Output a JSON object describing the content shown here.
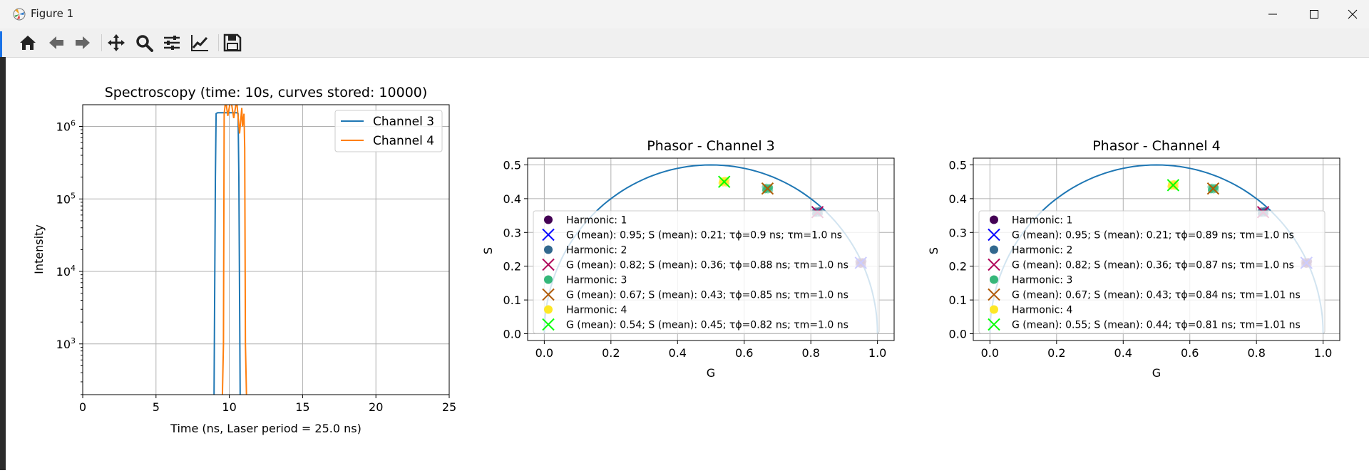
{
  "window": {
    "title": "Figure 1",
    "icons": {
      "app": "matplotlib-icon",
      "minimize": "minimize-icon",
      "maximize": "maximize-icon",
      "close": "close-icon"
    }
  },
  "toolbar": {
    "buttons": [
      "home-icon",
      "back-arrow-icon",
      "forward-arrow-icon",
      "pan-move-icon",
      "zoom-magnifier-icon",
      "configure-subplots-icon",
      "edit-axis-icon",
      "save-floppy-icon"
    ]
  },
  "colors": {
    "channel3": "#1f77b4",
    "channel4": "#ff7f0e",
    "h1_dot": "#440154",
    "h2_dot": "#31688e",
    "h3_dot": "#35b779",
    "h4_dot": "#fde725",
    "h1_x": "#0000ff",
    "h2_x": "#b0005a",
    "h3_x": "#b05a00",
    "h4_x": "#00ff00"
  },
  "chart_data": [
    {
      "type": "line",
      "title": "Spectroscopy (time: 10s, curves stored: 10000)",
      "xlabel": "Time (ns, Laser period = 25.0 ns)",
      "ylabel": "Intensity",
      "xlim": [
        0,
        25
      ],
      "ylim_log10": [
        2.3,
        6.3
      ],
      "yscale": "log",
      "xticks": [
        "0",
        "5",
        "10",
        "15",
        "20",
        "25"
      ],
      "yticks": [
        {
          "base": "10",
          "exp": "6"
        },
        {
          "base": "10",
          "exp": "5"
        },
        {
          "base": "10",
          "exp": "4"
        },
        {
          "base": "10",
          "exp": "3"
        }
      ],
      "grid": true,
      "legend_position": "top-right",
      "series": [
        {
          "name": "Channel 3",
          "x": [
            8.95,
            9.05,
            9.1,
            9.2,
            10.5,
            10.6,
            10.65,
            10.75
          ],
          "y": [
            100,
            200000,
            1500000,
            1550000,
            1550000,
            1500000,
            200000,
            100
          ]
        },
        {
          "name": "Channel 4",
          "x": [
            9.5,
            9.6,
            9.65,
            9.75,
            9.9,
            10.1,
            10.3,
            10.5,
            10.7,
            10.85,
            10.9,
            11.0,
            11.05,
            11.1,
            11.2
          ],
          "y": [
            100,
            1000,
            1500000,
            2300000,
            1400000,
            2400000,
            1300000,
            2300000,
            800000,
            1800000,
            1000000,
            1500000,
            500000,
            1000,
            100
          ]
        }
      ]
    },
    {
      "type": "scatter",
      "title": "Phasor - Channel 3",
      "xlabel": "G",
      "ylabel": "S",
      "xlim": [
        -0.05,
        1.05
      ],
      "ylim": [
        -0.02,
        0.52
      ],
      "xticks": [
        "0.0",
        "0.2",
        "0.4",
        "0.6",
        "0.8",
        "1.0"
      ],
      "yticks": [
        "0.0",
        "0.1",
        "0.2",
        "0.3",
        "0.4",
        "0.5"
      ],
      "grid": true,
      "semicircle": true,
      "legend_position": "lower-left",
      "points": [
        {
          "harmonic": 1,
          "g": 0.95,
          "s": 0.21
        },
        {
          "harmonic": 2,
          "g": 0.82,
          "s": 0.36
        },
        {
          "harmonic": 3,
          "g": 0.67,
          "s": 0.43
        },
        {
          "harmonic": 4,
          "g": 0.54,
          "s": 0.45
        }
      ],
      "legend": [
        "Harmonic: 1",
        "G (mean): 0.95; S (mean): 0.21; τϕ=0.9 ns; τm=1.0 ns",
        "Harmonic: 2",
        "G (mean): 0.82; S (mean): 0.36; τϕ=0.88 ns; τm=1.0 ns",
        "Harmonic: 3",
        "G (mean): 0.67; S (mean): 0.43; τϕ=0.85 ns; τm=1.0 ns",
        "Harmonic: 4",
        "G (mean): 0.54; S (mean): 0.45; τϕ=0.82 ns; τm=1.0 ns"
      ]
    },
    {
      "type": "scatter",
      "title": "Phasor - Channel 4",
      "xlabel": "G",
      "ylabel": "S",
      "xlim": [
        -0.05,
        1.05
      ],
      "ylim": [
        -0.02,
        0.52
      ],
      "xticks": [
        "0.0",
        "0.2",
        "0.4",
        "0.6",
        "0.8",
        "1.0"
      ],
      "yticks": [
        "0.0",
        "0.1",
        "0.2",
        "0.3",
        "0.4",
        "0.5"
      ],
      "grid": true,
      "semicircle": true,
      "legend_position": "lower-left",
      "points": [
        {
          "harmonic": 1,
          "g": 0.95,
          "s": 0.21
        },
        {
          "harmonic": 2,
          "g": 0.82,
          "s": 0.36
        },
        {
          "harmonic": 3,
          "g": 0.67,
          "s": 0.43
        },
        {
          "harmonic": 4,
          "g": 0.55,
          "s": 0.44
        }
      ],
      "legend": [
        "Harmonic: 1",
        "G (mean): 0.95; S (mean): 0.21; τϕ=0.89 ns; τm=1.0 ns",
        "Harmonic: 2",
        "G (mean): 0.82; S (mean): 0.36; τϕ=0.87 ns; τm=1.0 ns",
        "Harmonic: 3",
        "G (mean): 0.67; S (mean): 0.43; τϕ=0.84 ns; τm=1.01 ns",
        "Harmonic: 4",
        "G (mean): 0.55; S (mean): 0.44; τϕ=0.81 ns; τm=1.01 ns"
      ]
    }
  ]
}
